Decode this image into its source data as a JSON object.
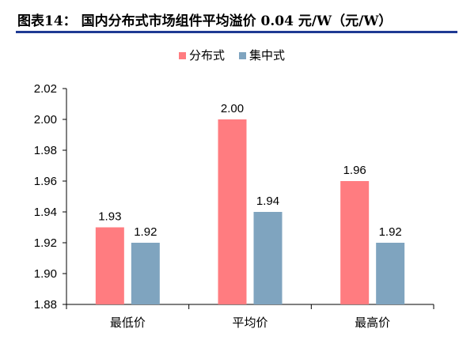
{
  "figure": {
    "title": "图表14：  国内分布式市场组件平均溢价 0.04 元/W（元/W）"
  },
  "chart_data": {
    "type": "bar",
    "title": "",
    "xlabel": "",
    "ylabel": "",
    "categories": [
      "最低价",
      "平均价",
      "最高价"
    ],
    "series": [
      {
        "name": "分布式",
        "color": "#ff7c80",
        "values": [
          1.93,
          2.0,
          1.96
        ],
        "labels": [
          "1.93",
          "2.00",
          "1.96"
        ]
      },
      {
        "name": "集中式",
        "color": "#7fa4bf",
        "values": [
          1.92,
          1.94,
          1.92
        ],
        "labels": [
          "1.92",
          "1.94",
          "1.92"
        ]
      }
    ],
    "ylim": [
      1.88,
      2.02
    ],
    "yticks": [
      1.88,
      1.9,
      1.92,
      1.94,
      1.96,
      1.98,
      2.0,
      2.02
    ],
    "ytick_labels": [
      "1.88",
      "1.90",
      "1.92",
      "1.94",
      "1.96",
      "1.98",
      "2.00",
      "2.02"
    ],
    "grid": false,
    "legend_position": "top-center"
  }
}
